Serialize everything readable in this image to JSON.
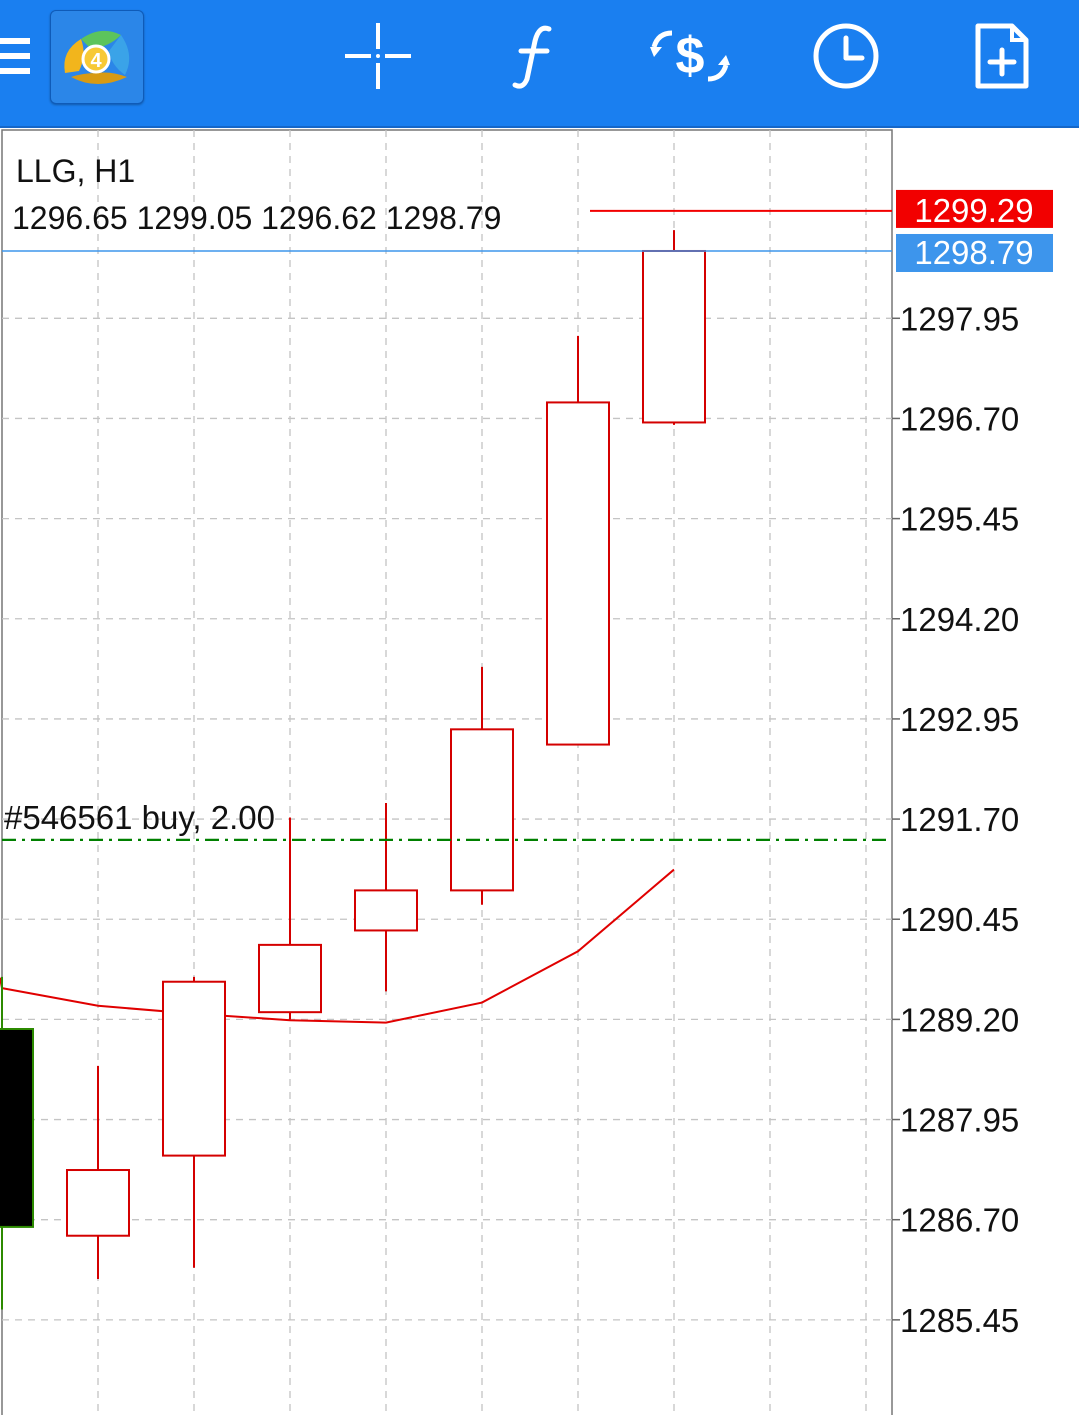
{
  "toolbar": {
    "menu_icon": "hamburger-menu-icon",
    "logo_badge": "4",
    "tools": [
      "crosshair-icon",
      "indicators-icon",
      "trade-icon",
      "timeframe-clock-icon",
      "new-order-icon"
    ]
  },
  "chart": {
    "symbol_timeframe": "LLG, H1",
    "ohlc": "1296.65 1299.05 1296.62 1298.79",
    "ask_price": "1299.29",
    "bid_price": "1298.79",
    "order_label": "#546561 buy, 2.00",
    "colors": {
      "bull": "#d40000",
      "bear": "#000000",
      "bear_border": "#2c8a00",
      "ask": "#f20000",
      "bid": "#3d95ec",
      "order": "#008000",
      "ma": "#e00000"
    }
  },
  "chart_data": {
    "type": "candlestick",
    "ylim": [
      1284.3,
      1300.3
    ],
    "y_ticks": [
      "1297.95",
      "1296.70",
      "1295.45",
      "1294.20",
      "1292.95",
      "1291.70",
      "1290.45",
      "1289.20",
      "1287.95",
      "1286.70",
      "1285.45"
    ],
    "candles": [
      {
        "o": 1289.08,
        "h": 1289.73,
        "l": 1285.58,
        "c": 1286.61
      },
      {
        "o": 1286.5,
        "h": 1288.62,
        "l": 1285.96,
        "c": 1287.32
      },
      {
        "o": 1287.5,
        "h": 1289.73,
        "l": 1286.1,
        "c": 1289.67
      },
      {
        "o": 1289.29,
        "h": 1291.72,
        "l": 1289.2,
        "c": 1290.13
      },
      {
        "o": 1290.31,
        "h": 1291.9,
        "l": 1289.55,
        "c": 1290.81
      },
      {
        "o": 1290.81,
        "h": 1293.6,
        "l": 1290.63,
        "c": 1292.82
      },
      {
        "o": 1292.63,
        "h": 1297.73,
        "l": 1292.63,
        "c": 1296.9
      },
      {
        "o": 1296.65,
        "h": 1299.05,
        "l": 1296.62,
        "c": 1298.79
      }
    ],
    "moving_average": [
      1289.59,
      1289.37,
      1289.27,
      1289.19,
      1289.16,
      1289.41,
      1290.05,
      1291.07
    ],
    "ask": 1299.29,
    "bid": 1298.79,
    "order_level": 1291.44
  }
}
